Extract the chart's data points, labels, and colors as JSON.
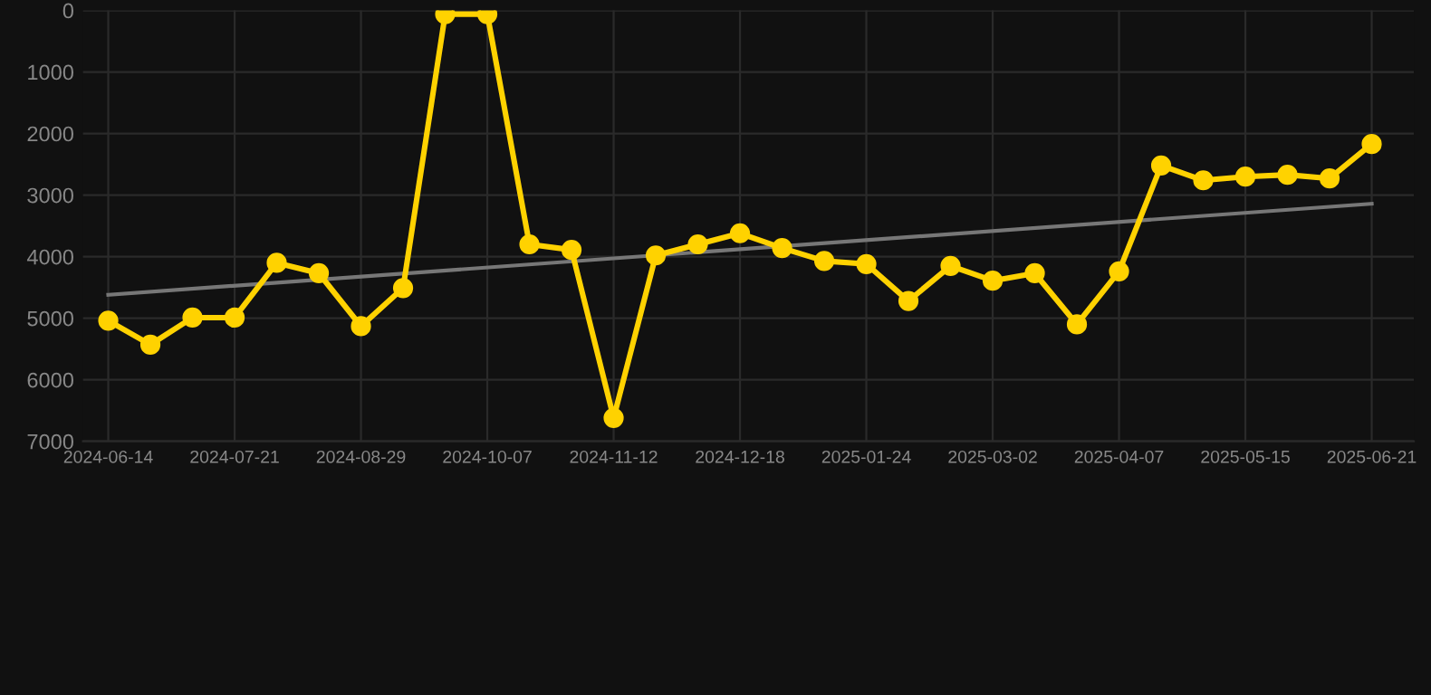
{
  "chart_data": {
    "type": "line",
    "categories": [
      "2024-06-14",
      null,
      null,
      "2024-07-21",
      null,
      null,
      "2024-08-29",
      null,
      null,
      "2024-10-07",
      null,
      null,
      "2024-11-12",
      null,
      null,
      "2024-12-18",
      null,
      null,
      "2025-01-24",
      null,
      null,
      "2025-03-02",
      null,
      null,
      "2025-04-07",
      null,
      null,
      "2025-05-15",
      null,
      null,
      "2025-06-21"
    ],
    "series": [
      {
        "color": "#ffd200",
        "marker": "circle",
        "values": [
          5040,
          5430,
          4990,
          4990,
          4100,
          4270,
          5130,
          4510,
          60,
          60,
          3800,
          3890,
          6620,
          3980,
          3800,
          3620,
          3860,
          4070,
          4120,
          4720,
          4150,
          4390,
          4270,
          5100,
          4240,
          2520,
          2760,
          2700,
          2670,
          2730,
          2170
        ]
      },
      {
        "type": "line",
        "color": "#777777",
        "marker": "none",
        "values": [
          4620,
          null,
          null,
          null,
          null,
          null,
          null,
          null,
          null,
          null,
          null,
          null,
          null,
          null,
          null,
          null,
          null,
          null,
          null,
          null,
          null,
          null,
          null,
          null,
          null,
          null,
          null,
          null,
          null,
          null,
          3140
        ]
      }
    ],
    "ylim": [
      7000,
      0
    ],
    "yticks": [
      0,
      1000,
      2000,
      3000,
      4000,
      5000,
      6000,
      7000
    ],
    "grid": true
  }
}
